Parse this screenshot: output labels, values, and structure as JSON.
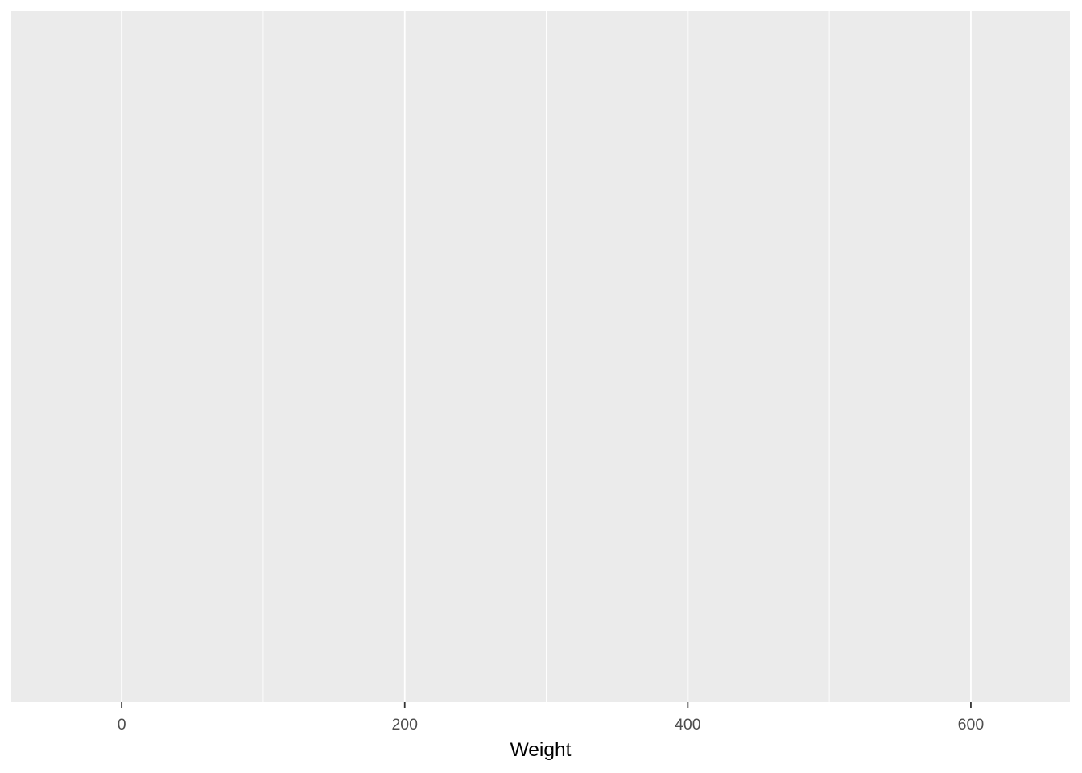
{
  "chart_data": {
    "type": "histogram",
    "title": "",
    "xlabel": "Weight",
    "ylabel": "",
    "xlim": [
      -78,
      670
    ],
    "x_major_ticks": [
      0,
      200,
      400,
      600
    ],
    "x_tick_labels": [
      "0",
      "200",
      "400",
      "600"
    ],
    "x_minor_gridlines": [
      100,
      300,
      500
    ],
    "y_axis_shown": false,
    "grid": true,
    "series": [],
    "colors": {
      "panel_background": "#ebebeb",
      "gridline": "#ffffff",
      "tick_mark": "#333333",
      "tick_label": "#4d4d4d",
      "axis_title": "#000000"
    }
  }
}
